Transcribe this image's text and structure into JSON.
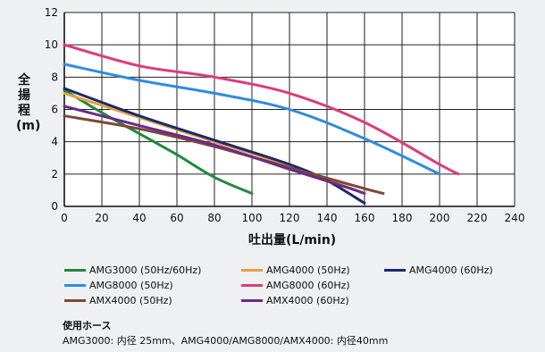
{
  "chart_data": {
    "type": "line",
    "xlabel": "吐出量(L/min)",
    "ylabel": "全揚程(m)",
    "xlim": [
      0,
      240
    ],
    "ylim": [
      0,
      12
    ],
    "xticks": [
      "0",
      "20",
      "40",
      "60",
      "80",
      "100",
      "120",
      "140",
      "160",
      "180",
      "200",
      "220",
      "240"
    ],
    "yticks": [
      "0",
      "2",
      "4",
      "6",
      "8",
      "10",
      "12"
    ],
    "grid": true,
    "series": [
      {
        "name": "AMG3000 (50Hz/60Hz)",
        "color": "#1f8a3d",
        "x": [
          0,
          20,
          40,
          60,
          80,
          100
        ],
        "y": [
          7.2,
          5.8,
          4.5,
          3.2,
          1.8,
          0.8
        ]
      },
      {
        "name": "AMG4000 (50Hz)",
        "color": "#e8a040",
        "x": [
          0,
          40,
          80,
          120,
          160
        ],
        "y": [
          7.0,
          5.5,
          4.0,
          2.5,
          0.8
        ]
      },
      {
        "name": "AMG4000 (60Hz)",
        "color": "#1a2a6a",
        "x": [
          0,
          40,
          80,
          120,
          140,
          160
        ],
        "y": [
          7.3,
          5.6,
          4.1,
          2.6,
          1.6,
          0.2
        ]
      },
      {
        "name": "AMG8000 (50Hz)",
        "color": "#2e8ce0",
        "x": [
          0,
          40,
          80,
          120,
          160,
          200
        ],
        "y": [
          8.8,
          7.8,
          7.0,
          6.0,
          4.2,
          2.0
        ]
      },
      {
        "name": "AMG8000 (60Hz)",
        "color": "#e03a7a",
        "x": [
          0,
          40,
          80,
          120,
          160,
          200,
          210
        ],
        "y": [
          10.0,
          8.7,
          8.0,
          7.0,
          5.2,
          2.6,
          2.0
        ]
      },
      {
        "name": "AMX4000 (50Hz)",
        "color": "#7a4a32",
        "x": [
          0,
          40,
          80,
          120,
          160,
          170
        ],
        "y": [
          5.6,
          4.8,
          3.7,
          2.4,
          1.1,
          0.8
        ]
      },
      {
        "name": "AMX4000 (60Hz)",
        "color": "#6a2a8a",
        "x": [
          0,
          40,
          80,
          120,
          150,
          160
        ],
        "y": [
          6.2,
          5.0,
          3.8,
          2.3,
          1.2,
          0.8
        ]
      }
    ]
  },
  "hose": {
    "title": "使用ホース",
    "text": "AMG3000: 内径 25mm、AMG4000/AMG8000/AMX4000: 内径40mm"
  }
}
